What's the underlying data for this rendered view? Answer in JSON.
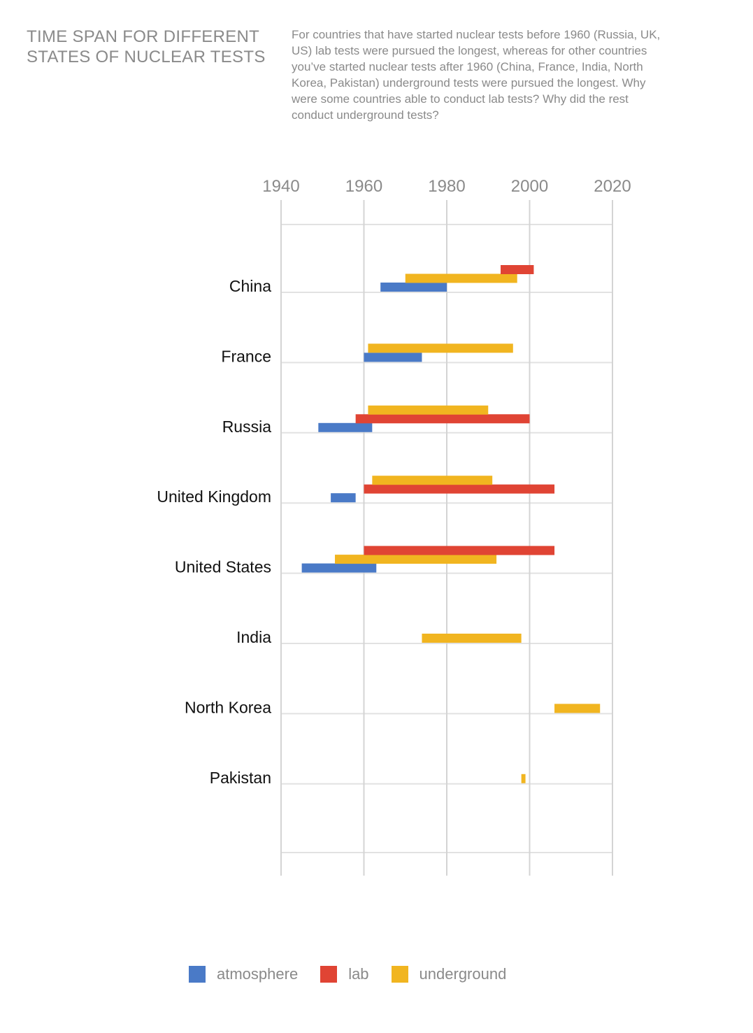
{
  "header": {
    "title_lines": [
      "TIME SPAN FOR DIFFERENT",
      "STATES OF NUCLEAR TESTS"
    ],
    "description_lines": [
      "For countries that have started nuclear tests before 1960 (Russia, UK,",
      "US) lab tests were pursued the longest, whereas for other countries",
      "you’ve started nuclear tests after 1960 (China, France, India, North",
      "Korea, Pakistan) underground tests were pursued the longest. Why",
      "were some countries able to conduct lab tests? Why did the rest",
      "conduct underground tests?"
    ]
  },
  "colors": {
    "atmosphere": "#4a7ac7",
    "lab": "#e04434",
    "underground": "#f1b520",
    "axis_text": "#8a8a8a",
    "category_text": "#111111",
    "grid": "#e2e2e2",
    "vgrid": "#d4d4d4"
  },
  "chart_data": {
    "type": "bar",
    "orientation": "horizontal floating range",
    "categories": [
      "China",
      "France",
      "Russia",
      "United Kingdom",
      "United States",
      "India",
      "North Korea",
      "Pakistan"
    ],
    "x_ticks": [
      1940,
      1960,
      1980,
      2000,
      2020
    ],
    "xlim": [
      1940,
      2020
    ],
    "grid": true,
    "legend_position": "bottom",
    "series": [
      {
        "name": "atmosphere",
        "color": "#4a7ac7",
        "ranges": [
          [
            1964,
            1980
          ],
          [
            1960,
            1974
          ],
          [
            1949,
            1962
          ],
          [
            1952,
            1958
          ],
          [
            1945,
            1963
          ],
          null,
          null,
          null
        ]
      },
      {
        "name": "lab",
        "color": "#e04434",
        "ranges": [
          [
            1993,
            2001
          ],
          null,
          [
            1958,
            2000
          ],
          [
            1960,
            2006
          ],
          [
            1960,
            2006
          ],
          null,
          null,
          null
        ]
      },
      {
        "name": "underground",
        "color": "#f1b520",
        "ranges": [
          [
            1970,
            1997
          ],
          [
            1961,
            1996
          ],
          [
            1961,
            1990
          ],
          [
            1962,
            1991
          ],
          [
            1953,
            1992
          ],
          [
            1974,
            1998
          ],
          [
            2006,
            2017
          ],
          [
            1998,
            1999
          ]
        ]
      }
    ]
  }
}
